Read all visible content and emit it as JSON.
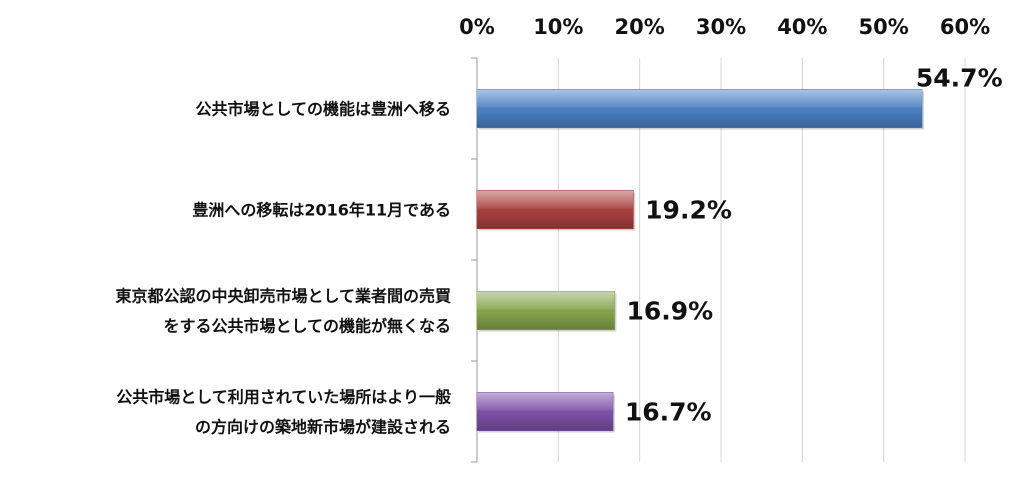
{
  "chart_data": {
    "type": "bar",
    "orientation": "horizontal",
    "categories": [
      [
        "公共市場としての機能は豊洲へ移る"
      ],
      [
        "豊洲への移転は2016年11月である"
      ],
      [
        "東京都公認の中央卸売市場として業者間の売買",
        "をする公共市場としての機能が無くなる"
      ],
      [
        "公共市場として利用されていた場所はより一般",
        "の方向けの築地新市場が建設される"
      ]
    ],
    "values": [
      54.7,
      19.2,
      16.9,
      16.7
    ],
    "value_labels": [
      "54.7%",
      "19.2%",
      "16.9%",
      "16.7%"
    ],
    "bar_colors": [
      "#4a7fc1",
      "#a8403d",
      "#84a34a",
      "#7b4fa6"
    ],
    "xlim": [
      0,
      60
    ],
    "x_ticks": [
      0,
      10,
      20,
      30,
      40,
      50,
      60
    ],
    "x_tick_labels": [
      "0%",
      "10%",
      "20%",
      "30%",
      "40%",
      "50%",
      "60%"
    ],
    "x_axis_position": "top",
    "grid": true,
    "legend": "none"
  }
}
